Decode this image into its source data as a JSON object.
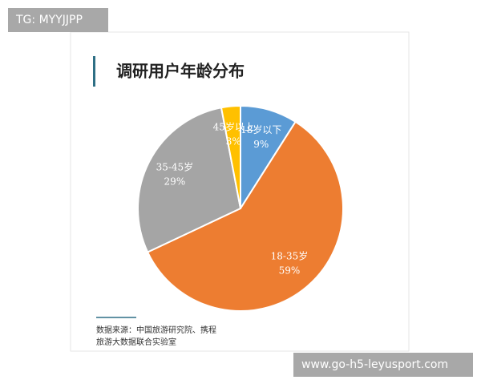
{
  "watermarks": {
    "top_left": "TG: MYYJJPP",
    "bottom_right": "www.go-h5-leyusport.com"
  },
  "chart_data": {
    "type": "pie",
    "title": "调研用户年龄分布",
    "categories": [
      "18岁以下",
      "18-35岁",
      "35-45岁",
      "45岁以上"
    ],
    "values": [
      9,
      59,
      29,
      3
    ],
    "value_labels": [
      "9%",
      "59%",
      "29%",
      "3%"
    ],
    "colors": [
      "#5b9bd5",
      "#ed7d31",
      "#a5a5a5",
      "#ffc000"
    ],
    "source": [
      "数据来源：中国旅游研究院、携程",
      "旅游大数据联合实验室"
    ]
  }
}
